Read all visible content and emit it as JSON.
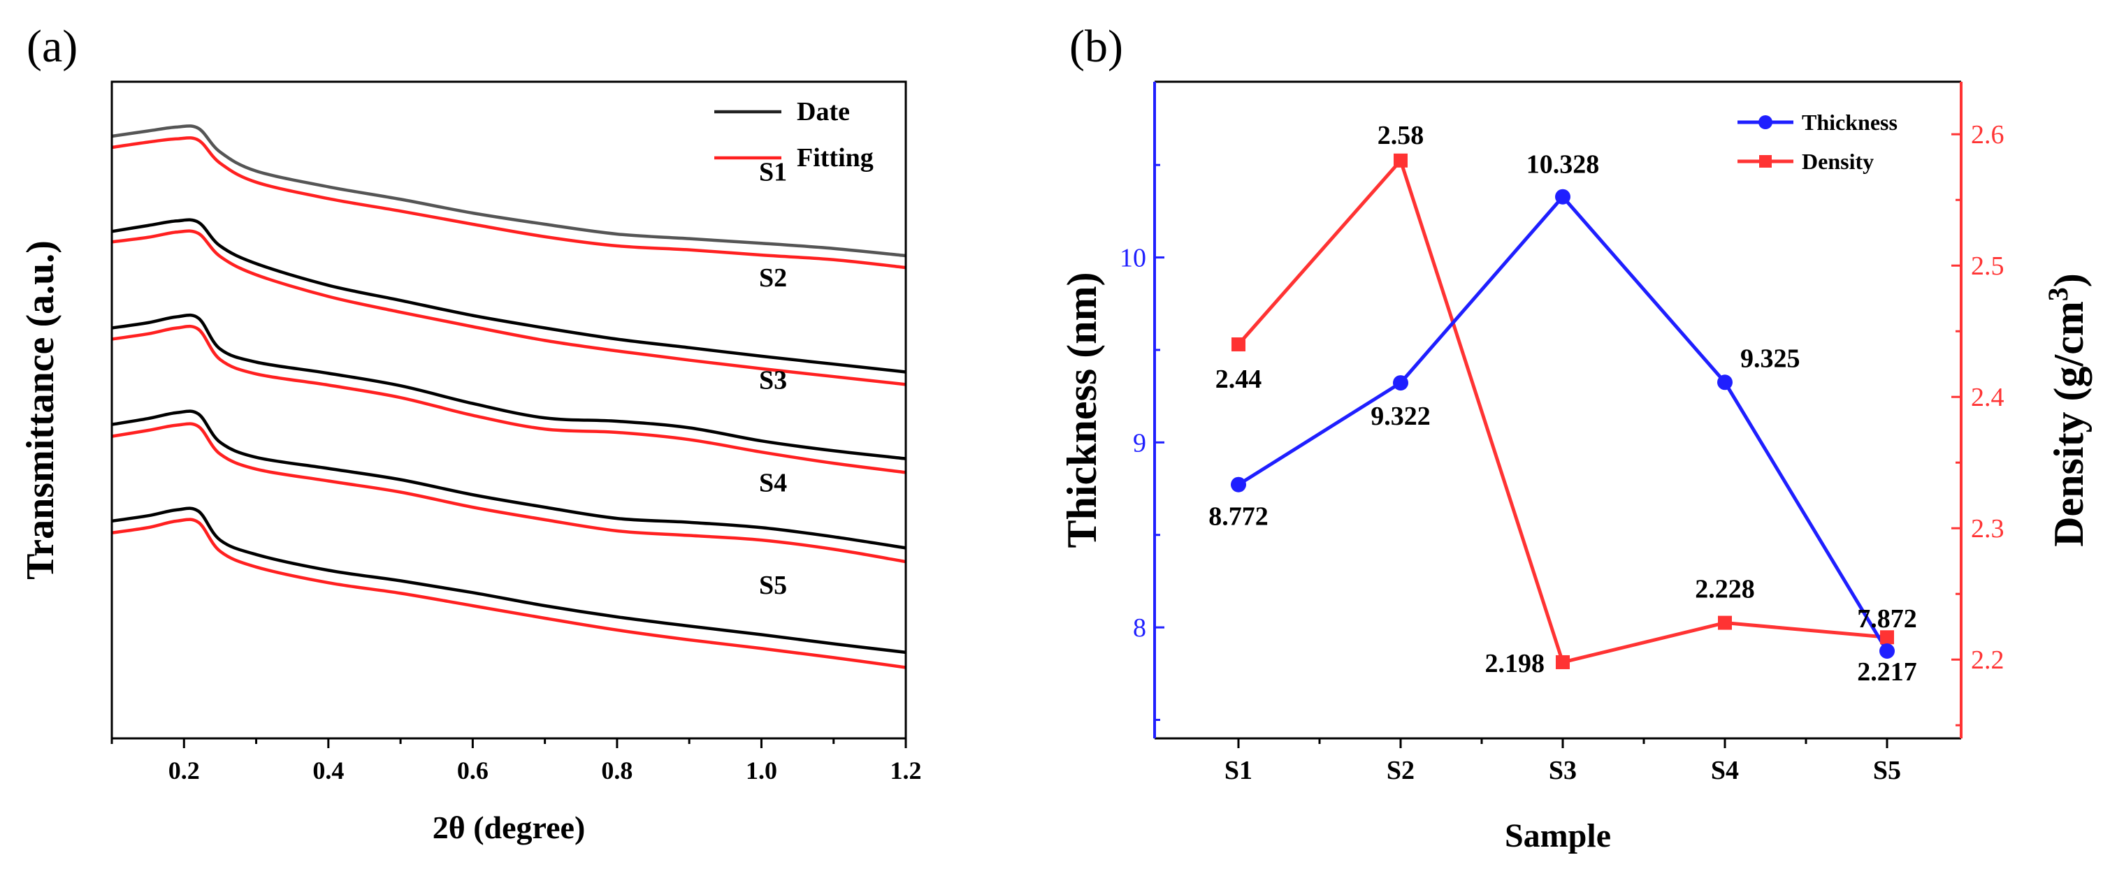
{
  "chart_data": [
    {
      "panel_label": "(a)",
      "type": "line",
      "xlabel": "2θ (degree)",
      "ylabel": "Transmittance (a.u.)",
      "xlim": [
        0.1,
        1.2
      ],
      "ylim": [
        0,
        1
      ],
      "xticks": [
        0.2,
        0.4,
        0.6,
        0.8,
        1.0,
        1.2
      ],
      "xtick_labels": [
        "0.2",
        "0.4",
        "0.6",
        "0.8",
        "1.0",
        "1.2"
      ],
      "yticks_shown": false,
      "legend": {
        "placement": "top-right",
        "entries": [
          {
            "name": "Date",
            "color": "#222222"
          },
          {
            "name": "Fitting",
            "color": "#ff2020"
          }
        ]
      },
      "annotations": [
        "S1",
        "S2",
        "S3",
        "S4",
        "S5"
      ],
      "x": [
        0.1,
        0.15,
        0.19,
        0.22,
        0.25,
        0.3,
        0.4,
        0.5,
        0.6,
        0.7,
        0.8,
        0.9,
        1.0,
        1.1,
        1.2
      ],
      "series": [
        {
          "name": "S1 Date",
          "sample": "S1",
          "kind": "Date",
          "color": "#555555",
          "values": [
            0.917,
            0.925,
            0.931,
            0.929,
            0.893,
            0.864,
            0.84,
            0.821,
            0.8,
            0.783,
            0.768,
            0.761,
            0.754,
            0.746,
            0.735
          ]
        },
        {
          "name": "S1 Fitting",
          "sample": "S1",
          "kind": "Fitting",
          "color": "#ff2020",
          "values": [
            0.9,
            0.908,
            0.913,
            0.911,
            0.876,
            0.847,
            0.822,
            0.803,
            0.783,
            0.764,
            0.75,
            0.744,
            0.736,
            0.729,
            0.717
          ]
        },
        {
          "name": "S2 Date",
          "sample": "S2",
          "kind": "Date",
          "color": "#000000",
          "values": [
            0.772,
            0.781,
            0.788,
            0.786,
            0.75,
            0.723,
            0.69,
            0.667,
            0.644,
            0.625,
            0.608,
            0.595,
            0.582,
            0.57,
            0.558
          ]
        },
        {
          "name": "S2 Fitting",
          "sample": "S2",
          "kind": "Fitting",
          "color": "#ff2020",
          "values": [
            0.756,
            0.763,
            0.771,
            0.769,
            0.734,
            0.706,
            0.673,
            0.649,
            0.627,
            0.606,
            0.59,
            0.576,
            0.563,
            0.551,
            0.539
          ]
        },
        {
          "name": "S3 Date",
          "sample": "S3",
          "kind": "Date",
          "color": "#000000",
          "values": [
            0.625,
            0.633,
            0.642,
            0.64,
            0.593,
            0.573,
            0.556,
            0.537,
            0.51,
            0.488,
            0.483,
            0.473,
            0.453,
            0.438,
            0.426
          ]
        },
        {
          "name": "S3 Fitting",
          "sample": "S3",
          "kind": "Fitting",
          "color": "#ff2020",
          "values": [
            0.608,
            0.616,
            0.625,
            0.623,
            0.577,
            0.555,
            0.538,
            0.519,
            0.492,
            0.471,
            0.466,
            0.455,
            0.436,
            0.419,
            0.405
          ]
        },
        {
          "name": "S4 Date",
          "sample": "S4",
          "kind": "Date",
          "color": "#000000",
          "values": [
            0.478,
            0.487,
            0.496,
            0.494,
            0.451,
            0.428,
            0.411,
            0.394,
            0.371,
            0.352,
            0.335,
            0.329,
            0.321,
            0.307,
            0.29
          ]
        },
        {
          "name": "S4 Fitting",
          "sample": "S4",
          "kind": "Fitting",
          "color": "#ff2020",
          "values": [
            0.46,
            0.469,
            0.477,
            0.475,
            0.433,
            0.41,
            0.392,
            0.375,
            0.352,
            0.333,
            0.316,
            0.309,
            0.302,
            0.288,
            0.269
          ]
        },
        {
          "name": "S5 Date",
          "sample": "S5",
          "kind": "Date",
          "color": "#000000",
          "values": [
            0.331,
            0.339,
            0.348,
            0.346,
            0.302,
            0.28,
            0.256,
            0.24,
            0.222,
            0.202,
            0.185,
            0.171,
            0.158,
            0.144,
            0.131
          ]
        },
        {
          "name": "S5 Fitting",
          "sample": "S5",
          "kind": "Fitting",
          "color": "#ff2020",
          "values": [
            0.313,
            0.321,
            0.331,
            0.329,
            0.285,
            0.261,
            0.237,
            0.221,
            0.202,
            0.183,
            0.165,
            0.15,
            0.137,
            0.123,
            0.108
          ]
        }
      ]
    },
    {
      "panel_label": "(b)",
      "type": "line",
      "xlabel": "Sample",
      "categories": [
        "S1",
        "S2",
        "S3",
        "S4",
        "S5"
      ],
      "ylabel_left": "Thickness (nm)",
      "ylabel_right_main": "Density (g/cm",
      "ylabel_right_sup": "3",
      "ylabel_right_close": ")",
      "ylim_left": [
        7.4,
        10.95
      ],
      "ylim_right": [
        2.14,
        2.64
      ],
      "yticks_left": [
        8,
        9,
        10
      ],
      "yticks_right": [
        2.2,
        2.3,
        2.4,
        2.5,
        2.6
      ],
      "ytick_labels_left": [
        "8",
        "9",
        "10"
      ],
      "ytick_labels_right": [
        "2.2",
        "2.3",
        "2.4",
        "2.5",
        "2.6"
      ],
      "legend": {
        "placement": "top-right",
        "entries": [
          {
            "name": "Thickness",
            "color": "#1f1fff",
            "marker": "circle"
          },
          {
            "name": "Density",
            "color": "#ff3333",
            "marker": "square"
          }
        ]
      },
      "series": [
        {
          "name": "Thickness",
          "axis": "left",
          "color": "#1f1fff",
          "marker": "circle",
          "values": [
            8.772,
            9.322,
            10.328,
            9.325,
            7.872
          ],
          "labels": [
            "8.772",
            "9.322",
            "10.328",
            "9.325",
            "7.872"
          ]
        },
        {
          "name": "Density",
          "axis": "right",
          "color": "#ff3333",
          "marker": "square",
          "values": [
            2.44,
            2.58,
            2.198,
            2.228,
            2.217
          ],
          "labels": [
            "2.44",
            "2.58",
            "2.198",
            "2.228",
            "2.217"
          ]
        }
      ]
    }
  ]
}
